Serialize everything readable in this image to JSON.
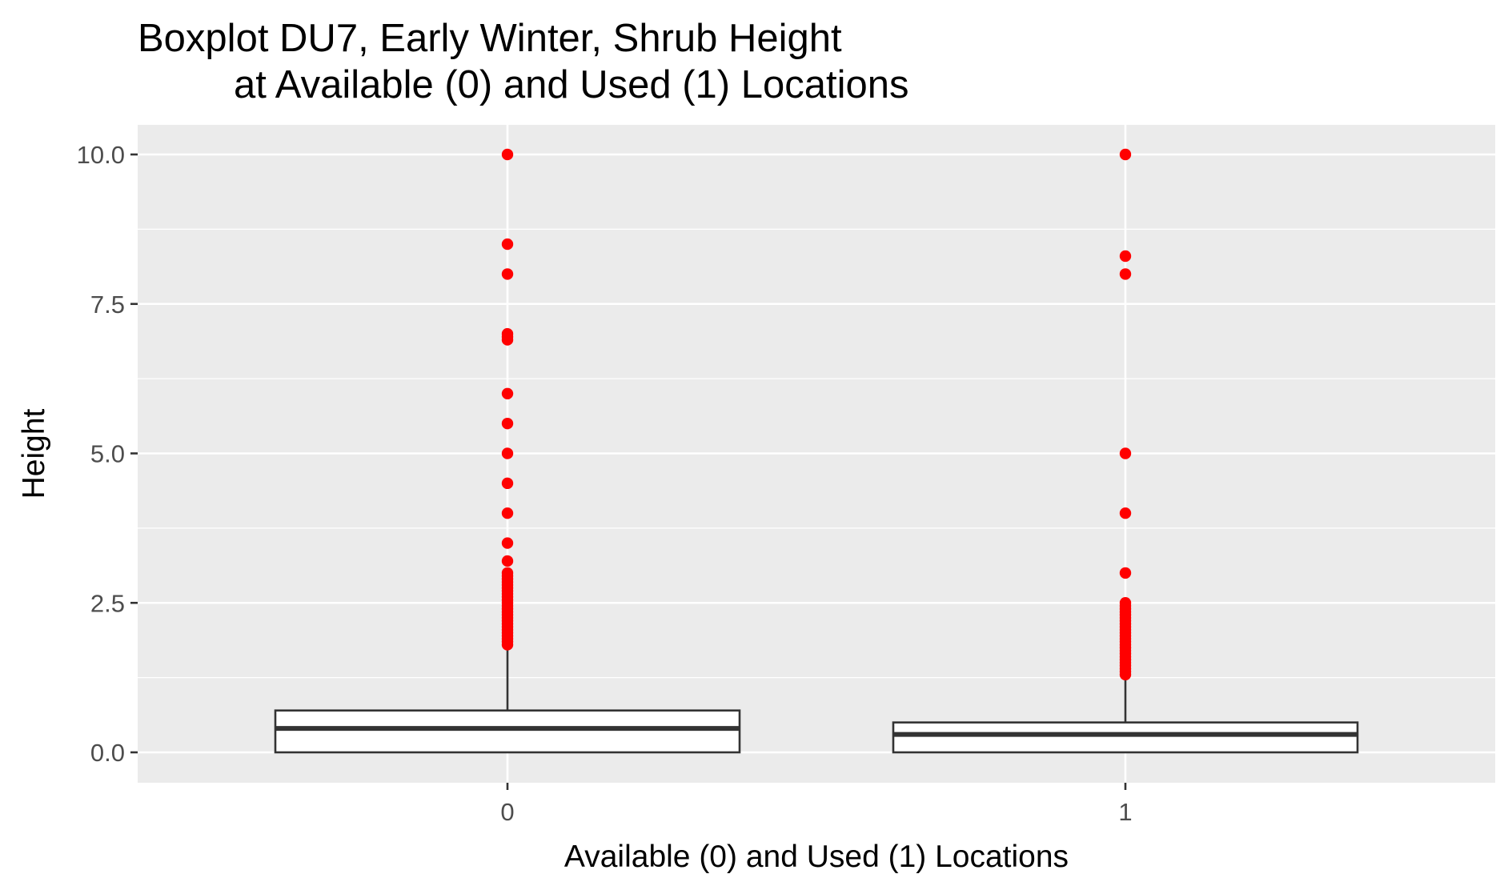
{
  "chart_data": {
    "type": "boxplot",
    "title": [
      "Boxplot DU7, Early Winter, Shrub Height",
      "at Available (0) and Used (1) Locations"
    ],
    "xlabel": "Available (0) and Used (1) Locations",
    "ylabel": "Height",
    "categories": [
      "0",
      "1"
    ],
    "ylim": [
      -0.5,
      10.5
    ],
    "y_ticks": [
      0.0,
      2.5,
      5.0,
      7.5,
      10.0
    ],
    "y_tick_labels": [
      "0.0",
      "2.5",
      "5.0",
      "7.5",
      "10.0"
    ],
    "grid": true,
    "colors": {
      "panel": "#ebebeb",
      "grid": "#ffffff",
      "box_fill": "#ffffff",
      "box_line": "#333333",
      "outlier": "#ff0000"
    },
    "boxes": [
      {
        "category": "0",
        "q1": 0.0,
        "median": 0.4,
        "q3": 0.7,
        "whisker_low": 0.0,
        "whisker_high": 1.75,
        "outliers": [
          10.0,
          8.5,
          8.0,
          7.0,
          6.95,
          6.9,
          6.0,
          5.5,
          5.0,
          4.5,
          4.0,
          3.5,
          3.2,
          3.0,
          2.95,
          2.9,
          2.85,
          2.8,
          2.75,
          2.7,
          2.65,
          2.6,
          2.55,
          2.5,
          2.45,
          2.4,
          2.35,
          2.3,
          2.25,
          2.2,
          2.15,
          2.1,
          2.05,
          2.0,
          1.95,
          1.9,
          1.85,
          1.8
        ]
      },
      {
        "category": "1",
        "q1": 0.0,
        "median": 0.3,
        "q3": 0.5,
        "whisker_low": 0.0,
        "whisker_high": 1.25,
        "outliers": [
          10.0,
          8.3,
          8.0,
          5.0,
          4.0,
          3.0,
          2.5,
          2.45,
          2.4,
          2.35,
          2.3,
          2.25,
          2.2,
          2.15,
          2.1,
          2.05,
          2.0,
          1.95,
          1.9,
          1.85,
          1.8,
          1.75,
          1.7,
          1.65,
          1.6,
          1.55,
          1.5,
          1.45,
          1.4,
          1.35,
          1.3
        ]
      }
    ]
  }
}
